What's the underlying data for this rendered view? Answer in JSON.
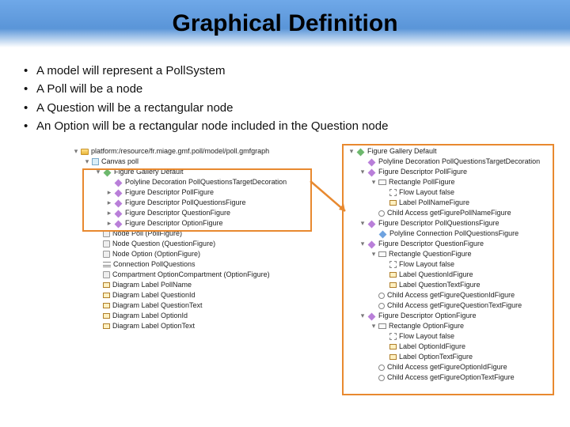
{
  "title": "Graphical Definition",
  "bullets": [
    "A model will represent a PollSystem",
    "A Poll will be a node",
    "A Question will be a rectangular node",
    "An Option will be a rectangular node included in the Question node"
  ],
  "colors": {
    "highlight_border": "#e8892f",
    "arrow": "#e8892f",
    "header_gradient_top": "#6fa8e8",
    "header_gradient_mid": "#5a95d8"
  },
  "left_tree": [
    {
      "depth": 0,
      "twist": "�heading",
      "icon": "folder",
      "label": "platform:/resource/fr.miage.gmf.poll/model/poll.gmfgraph"
    },
    {
      "depth": 1,
      "twist": "▾",
      "icon": "canvas",
      "label": "Canvas poll"
    },
    {
      "depth": 2,
      "twist": "▾",
      "icon": "diamond-g",
      "label": "Figure Gallery Default"
    },
    {
      "depth": 3,
      "twist": "",
      "icon": "diamond-p",
      "label": "Polyline Decoration PollQuestionsTargetDecoration"
    },
    {
      "depth": 3,
      "twist": "▸",
      "icon": "diamond-p",
      "label": "Figure Descriptor PollFigure"
    },
    {
      "depth": 3,
      "twist": "▸",
      "icon": "diamond-p",
      "label": "Figure Descriptor PollQuestionsFigure"
    },
    {
      "depth": 3,
      "twist": "▸",
      "icon": "diamond-p",
      "label": "Figure Descriptor QuestionFigure"
    },
    {
      "depth": 3,
      "twist": "▸",
      "icon": "diamond-p",
      "label": "Figure Descriptor OptionFigure"
    },
    {
      "depth": 2,
      "twist": "",
      "icon": "node",
      "label": "Node Poll (PollFigure)"
    },
    {
      "depth": 2,
      "twist": "",
      "icon": "node",
      "label": "Node Question (QuestionFigure)"
    },
    {
      "depth": 2,
      "twist": "",
      "icon": "node",
      "label": "Node Option (OptionFigure)"
    },
    {
      "depth": 2,
      "twist": "",
      "icon": "link",
      "label": "Connection PollQuestions"
    },
    {
      "depth": 2,
      "twist": "",
      "icon": "node",
      "label": "Compartment OptionCompartment (OptionFigure)"
    },
    {
      "depth": 2,
      "twist": "",
      "icon": "label",
      "label": "Diagram Label PollName"
    },
    {
      "depth": 2,
      "twist": "",
      "icon": "label",
      "label": "Diagram Label QuestionId"
    },
    {
      "depth": 2,
      "twist": "",
      "icon": "label",
      "label": "Diagram Label QuestionText"
    },
    {
      "depth": 2,
      "twist": "",
      "icon": "label",
      "label": "Diagram Label OptionId"
    },
    {
      "depth": 2,
      "twist": "",
      "icon": "label",
      "label": "Diagram Label OptionText"
    }
  ],
  "right_tree": [
    {
      "depth": 0,
      "twist": "▾",
      "icon": "diamond-g",
      "label": "Figure Gallery Default"
    },
    {
      "depth": 1,
      "twist": "",
      "icon": "diamond-p",
      "label": "Polyline Decoration PollQuestionsTargetDecoration"
    },
    {
      "depth": 1,
      "twist": "▾",
      "icon": "diamond-p",
      "label": "Figure Descriptor PollFigure"
    },
    {
      "depth": 2,
      "twist": "▾",
      "icon": "rect",
      "label": "Rectangle PollFigure"
    },
    {
      "depth": 3,
      "twist": "",
      "icon": "flow",
      "label": "Flow Layout false"
    },
    {
      "depth": 3,
      "twist": "",
      "icon": "label",
      "label": "Label PollNameFigure"
    },
    {
      "depth": 2,
      "twist": "",
      "icon": "child",
      "label": "Child Access getFigurePollNameFigure"
    },
    {
      "depth": 1,
      "twist": "▾",
      "icon": "diamond-p",
      "label": "Figure Descriptor PollQuestionsFigure"
    },
    {
      "depth": 2,
      "twist": "",
      "icon": "diamond-b",
      "label": "Polyline Connection PollQuestionsFigure"
    },
    {
      "depth": 1,
      "twist": "▾",
      "icon": "diamond-p",
      "label": "Figure Descriptor QuestionFigure"
    },
    {
      "depth": 2,
      "twist": "▾",
      "icon": "rect",
      "label": "Rectangle QuestionFigure"
    },
    {
      "depth": 3,
      "twist": "",
      "icon": "flow",
      "label": "Flow Layout false"
    },
    {
      "depth": 3,
      "twist": "",
      "icon": "label",
      "label": "Label QuestionIdFigure"
    },
    {
      "depth": 3,
      "twist": "",
      "icon": "label",
      "label": "Label QuestionTextFigure"
    },
    {
      "depth": 2,
      "twist": "",
      "icon": "child",
      "label": "Child Access getFigureQuestionIdFigure"
    },
    {
      "depth": 2,
      "twist": "",
      "icon": "child",
      "label": "Child Access getFigureQuestionTextFigure"
    },
    {
      "depth": 1,
      "twist": "▾",
      "icon": "diamond-p",
      "label": "Figure Descriptor OptionFigure"
    },
    {
      "depth": 2,
      "twist": "▾",
      "icon": "rect",
      "label": "Rectangle OptionFigure"
    },
    {
      "depth": 3,
      "twist": "",
      "icon": "flow",
      "label": "Flow Layout false"
    },
    {
      "depth": 3,
      "twist": "",
      "icon": "label",
      "label": "Label OptionIdFigure"
    },
    {
      "depth": 3,
      "twist": "",
      "icon": "label",
      "label": "Label OptionTextFigure"
    },
    {
      "depth": 2,
      "twist": "",
      "icon": "child",
      "label": "Child Access getFigureOptionIdFigure"
    },
    {
      "depth": 2,
      "twist": "",
      "icon": "child",
      "label": "Child Access getFigureOptionTextFigure"
    }
  ]
}
